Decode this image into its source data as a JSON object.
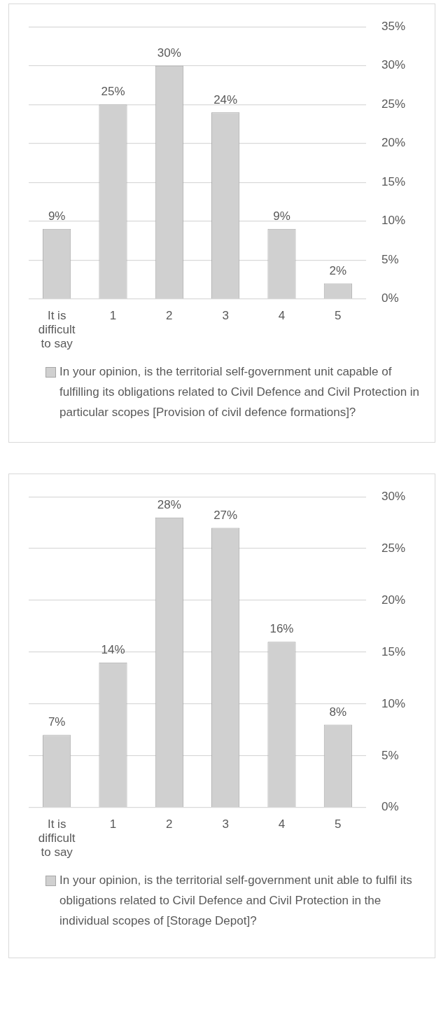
{
  "chart_data": [
    {
      "type": "bar",
      "categories": [
        "It is difficult to say",
        "1",
        "2",
        "3",
        "4",
        "5"
      ],
      "series": [
        {
          "name": "In your opinion, is the territorial self-government unit capable of fulfilling its obligations related to Civil Defence and Civil Protection in particular scopes [Provision of civil defence formations]?",
          "color": "#d0d0d0",
          "values": [
            9,
            25,
            30,
            24,
            9,
            2
          ],
          "value_labels": [
            "9%",
            "25%",
            "30%",
            "24%",
            "9%",
            "2%"
          ]
        }
      ],
      "ylim": [
        0,
        35
      ],
      "yticks": [
        {
          "value": 0,
          "label": "0%"
        },
        {
          "value": 5,
          "label": "5%"
        },
        {
          "value": 10,
          "label": "10%"
        },
        {
          "value": 15,
          "label": "15%"
        },
        {
          "value": 20,
          "label": "20%"
        },
        {
          "value": 25,
          "label": "25%"
        },
        {
          "value": 30,
          "label": "30%"
        },
        {
          "value": 35,
          "label": "35%"
        }
      ],
      "grid": "y",
      "legend": "bottom"
    },
    {
      "type": "bar",
      "categories": [
        "It is difficult to say",
        "1",
        "2",
        "3",
        "4",
        "5"
      ],
      "series": [
        {
          "name": "In your opinion, is the territorial self-government unit able to fulfil its obligations related to Civil Defence and Civil Protection in the individual scopes of [Storage Depot]?",
          "color": "#d0d0d0",
          "values": [
            7,
            14,
            28,
            27,
            16,
            8
          ],
          "value_labels": [
            "7%",
            "14%",
            "28%",
            "27%",
            "16%",
            "8%"
          ]
        }
      ],
      "ylim": [
        0,
        30
      ],
      "yticks": [
        {
          "value": 0,
          "label": "0%"
        },
        {
          "value": 5,
          "label": "5%"
        },
        {
          "value": 10,
          "label": "10%"
        },
        {
          "value": 15,
          "label": "15%"
        },
        {
          "value": 20,
          "label": "20%"
        },
        {
          "value": 25,
          "label": "25%"
        },
        {
          "value": 30,
          "label": "30%"
        }
      ],
      "grid": "y",
      "legend": "bottom"
    }
  ]
}
